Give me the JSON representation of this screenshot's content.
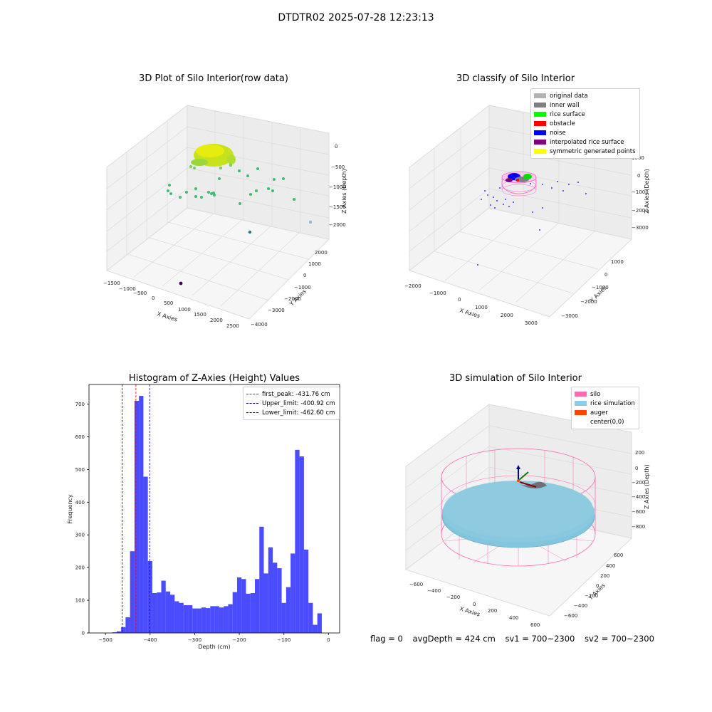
{
  "suptitle": "DTDTR02 2025-07-28 12:23:13",
  "chart_data": [
    {
      "type": "scatter",
      "title": "3D Plot of Silo Interior(row data)",
      "xlabel": "X Axies",
      "ylabel": "Y Axies",
      "zlabel": "Z Axies (Depth)",
      "x_ticks": [
        "−1500",
        "−1000",
        "−500",
        "0",
        "500",
        "1000",
        "1500",
        "2000",
        "2500"
      ],
      "y_ticks": [
        "−4000",
        "−3000",
        "−2000",
        "−1000",
        "0",
        "1000",
        "2000"
      ],
      "z_ticks": [
        "0",
        "−500",
        "−1000",
        "−1500",
        "−2000"
      ]
    },
    {
      "type": "scatter",
      "title": "3D classify of Silo Interior",
      "xlabel": "X Axies",
      "ylabel": "Y Axies",
      "zlabel": "Z Axies (Depth)",
      "x_ticks": [
        "−2000",
        "−1000",
        "0",
        "1000",
        "2000",
        "3000"
      ],
      "y_ticks": [
        "−3000",
        "−2000",
        "−1000",
        "0",
        "1000"
      ],
      "z_ticks": [
        "1000",
        "0",
        "−1000",
        "−2000",
        "−3000"
      ],
      "legend": [
        {
          "label": "original data",
          "color": "#b3b3b3"
        },
        {
          "label": "inner wall",
          "color": "#808080"
        },
        {
          "label": "rice surface",
          "color": "#00ff00"
        },
        {
          "label": "obstacle",
          "color": "#ff0000"
        },
        {
          "label": "noise",
          "color": "#0000ff"
        },
        {
          "label": "interpolated rice surface",
          "color": "#800080"
        },
        {
          "label": "symmetric generated points",
          "color": "#ffff00"
        }
      ]
    },
    {
      "type": "bar",
      "title": "Histogram of Z-Axies (Height) Values",
      "xlabel": "Depth (cm)",
      "ylabel": "Frequency",
      "xlim": [
        -537,
        25
      ],
      "ylim": [
        0,
        760
      ],
      "x_ticks": [
        -500,
        -400,
        -300,
        -200,
        -100,
        0
      ],
      "x_tick_labels": [
        "−500",
        "−400",
        "−300",
        "−200",
        "−100",
        "0"
      ],
      "y_ticks": [
        0,
        100,
        200,
        300,
        400,
        500,
        600,
        700
      ],
      "bar_color": "#0000ff",
      "bin_left_edges": [
        -485,
        -475,
        -465,
        -455,
        -445,
        -435,
        -425,
        -415,
        -405,
        -395,
        -385,
        -375,
        -365,
        -355,
        -345,
        -335,
        -325,
        -315,
        -305,
        -295,
        -285,
        -275,
        -265,
        -255,
        -245,
        -235,
        -225,
        -215,
        -205,
        -195,
        -185,
        -175,
        -165,
        -155,
        -145,
        -135,
        -125,
        -115,
        -105,
        -95,
        -85,
        -75,
        -65,
        -55,
        -45,
        -35,
        -25,
        -15,
        -5
      ],
      "bin_width": 10,
      "values": [
        2,
        5,
        18,
        48,
        250,
        710,
        725,
        478,
        220,
        122,
        124,
        160,
        127,
        117,
        97,
        92,
        85,
        85,
        75,
        75,
        78,
        76,
        82,
        82,
        78,
        82,
        88,
        125,
        170,
        165,
        120,
        122,
        165,
        325,
        182,
        262,
        215,
        198,
        92,
        140,
        243,
        560,
        540,
        255,
        92,
        25,
        60,
        0,
        0
      ],
      "lines": [
        {
          "label": "first_peak: -431.76 cm",
          "x": -431.76,
          "color": "#ff0000"
        },
        {
          "label": "Upper_limit: -400.92 cm",
          "x": -400.92,
          "color": "#0000b0"
        },
        {
          "label": "Lower_limit: -462.60 cm",
          "x": -462.6,
          "color": "#0000b0"
        }
      ]
    },
    {
      "type": "scatter",
      "title": "3D simulation of Silo Interior",
      "xlabel": "X Axies",
      "ylabel": "Y Axies",
      "zlabel": "Z Axies (Depth)",
      "x_ticks": [
        "−600",
        "−400",
        "−200",
        "0",
        "200",
        "400",
        "600"
      ],
      "y_ticks": [
        "−600",
        "−400",
        "−200",
        "0",
        "200",
        "400",
        "600"
      ],
      "z_ticks": [
        "200",
        "0",
        "−200",
        "−400",
        "−600",
        "−800"
      ],
      "legend": [
        {
          "label": "silo",
          "color": "#ff69b4"
        },
        {
          "label": "rice simulation",
          "color": "#87ceeb"
        },
        {
          "label": "auger",
          "color": "#ff4500"
        },
        {
          "label": "center(0,0)",
          "color": ""
        }
      ]
    }
  ],
  "status": {
    "flag": "flag = 0",
    "avg_depth": "avgDepth = 424 cm",
    "sv1": "sv1 = 700~2300",
    "sv2": "sv2 = 700~2300"
  }
}
